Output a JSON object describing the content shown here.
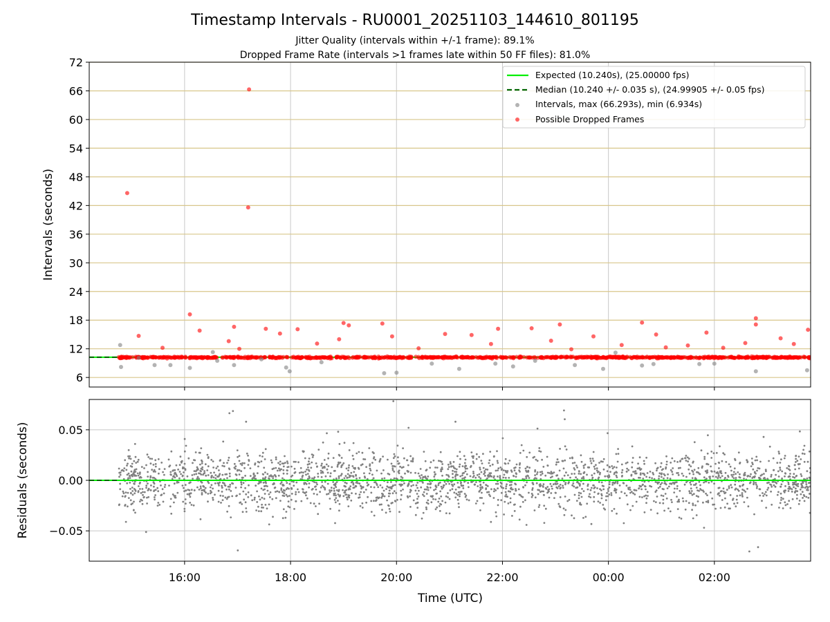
{
  "chart_data": [
    {
      "type": "scatter",
      "panel": "top",
      "title": "Timestamp Intervals - RU0001_20251103_144610_801195",
      "subtitle_lines": [
        "Jitter Quality (intervals within +/-1 frame): 89.1%",
        "Dropped Frame Rate (intervals >1 frames late within 50 FF files): 81.0%"
      ],
      "ylabel": "Intervals (seconds)",
      "ylim": [
        4,
        72
      ],
      "yticks": [
        "6",
        "12",
        "18",
        "24",
        "30",
        "36",
        "42",
        "48",
        "54",
        "60",
        "66",
        "72"
      ],
      "x_start": "2025-11-03 14:12",
      "x_end": "2025-11-04 03:49",
      "xticks": [
        "16:00",
        "18:00",
        "20:00",
        "22:00",
        "00:00",
        "02:00"
      ],
      "grid": true,
      "legend_position": "top-right",
      "legend": [
        {
          "label": "Expected (10.240s), (25.00000 fps)",
          "style": "solid-line",
          "color": "#00ee00"
        },
        {
          "label": "Median (10.240 +/- 0.035 s), (24.99905 +/- 0.05 fps)",
          "style": "dashed-line",
          "color": "#006400"
        },
        {
          "label": "Intervals, max (66.293s), min (6.934s)",
          "style": "marker",
          "color": "#808080"
        },
        {
          "label": "Possible Dropped Frames",
          "style": "marker",
          "color": "#ff0000"
        }
      ],
      "series": [
        {
          "name": "Expected (10.240s), (25.00000 fps)",
          "kind": "hline",
          "y": 10.24,
          "color": "#00ee00"
        },
        {
          "name": "Median (10.240 +/- 0.035 s), (24.99905 +/- 0.05 fps)",
          "kind": "hline",
          "y": 10.24,
          "color": "#006400"
        },
        {
          "name": "Intervals, max (66.293s), min (6.934s)",
          "kind": "points",
          "color": "#808080",
          "points": [
            {
              "x": "2025-11-03 14:47",
              "y": 12.8
            },
            {
              "x": "2025-11-03 14:48",
              "y": 8.2
            },
            {
              "x": "2025-11-03 15:08",
              "y": 10.1
            },
            {
              "x": "2025-11-03 15:26",
              "y": 8.6
            },
            {
              "x": "2025-11-03 15:44",
              "y": 8.6
            },
            {
              "x": "2025-11-03 16:06",
              "y": 8.0
            },
            {
              "x": "2025-11-03 16:32",
              "y": 11.3
            },
            {
              "x": "2025-11-03 16:37",
              "y": 9.5
            },
            {
              "x": "2025-11-03 16:56",
              "y": 8.6
            },
            {
              "x": "2025-11-03 17:27",
              "y": 9.8
            },
            {
              "x": "2025-11-03 17:55",
              "y": 8.1
            },
            {
              "x": "2025-11-03 17:59",
              "y": 7.3
            },
            {
              "x": "2025-11-03 18:35",
              "y": 9.2
            },
            {
              "x": "2025-11-03 19:46",
              "y": 6.9
            },
            {
              "x": "2025-11-03 20:00",
              "y": 7.0
            },
            {
              "x": "2025-11-03 20:40",
              "y": 8.9
            },
            {
              "x": "2025-11-03 21:11",
              "y": 7.8
            },
            {
              "x": "2025-11-03 21:52",
              "y": 8.9
            },
            {
              "x": "2025-11-03 22:12",
              "y": 8.3
            },
            {
              "x": "2025-11-03 22:37",
              "y": 9.5
            },
            {
              "x": "2025-11-03 23:22",
              "y": 8.6
            },
            {
              "x": "2025-11-03 23:54",
              "y": 7.8
            },
            {
              "x": "2025-11-04 00:08",
              "y": 11.2
            },
            {
              "x": "2025-11-04 00:38",
              "y": 8.5
            },
            {
              "x": "2025-11-04 00:51",
              "y": 8.8
            },
            {
              "x": "2025-11-04 01:43",
              "y": 8.8
            },
            {
              "x": "2025-11-04 02:00",
              "y": 8.9
            },
            {
              "x": "2025-11-04 02:47",
              "y": 7.3
            },
            {
              "x": "2025-11-04 03:45",
              "y": 7.5
            }
          ]
        },
        {
          "name": "Possible Dropped Frames",
          "kind": "points",
          "color": "#ff0000",
          "points": [
            {
              "x": "2025-11-03 14:55",
              "y": 44.6
            },
            {
              "x": "2025-11-03 17:13",
              "y": 66.3
            },
            {
              "x": "2025-11-03 17:12",
              "y": 41.6
            },
            {
              "x": "2025-11-03 16:06",
              "y": 19.2
            },
            {
              "x": "2025-11-03 16:56",
              "y": 16.6
            },
            {
              "x": "2025-11-03 17:32",
              "y": 16.2
            },
            {
              "x": "2025-11-03 17:48",
              "y": 15.2
            },
            {
              "x": "2025-11-03 18:08",
              "y": 16.1
            },
            {
              "x": "2025-11-03 19:00",
              "y": 17.4
            },
            {
              "x": "2025-11-03 19:06",
              "y": 16.9
            },
            {
              "x": "2025-11-03 19:44",
              "y": 17.3
            },
            {
              "x": "2025-11-03 21:55",
              "y": 16.2
            },
            {
              "x": "2025-11-03 22:33",
              "y": 16.3
            },
            {
              "x": "2025-11-03 23:05",
              "y": 17.1
            },
            {
              "x": "2025-11-04 00:38",
              "y": 17.5
            },
            {
              "x": "2025-11-04 01:51",
              "y": 15.4
            },
            {
              "x": "2025-11-04 02:47",
              "y": 18.4
            },
            {
              "x": "2025-11-04 02:47",
              "y": 17.1
            },
            {
              "x": "2025-11-04 03:46",
              "y": 16.0
            },
            {
              "x": "2025-11-03 15:08",
              "y": 14.7
            },
            {
              "x": "2025-11-03 16:17",
              "y": 15.8
            },
            {
              "x": "2025-11-03 18:55",
              "y": 14.0
            },
            {
              "x": "2025-11-03 20:55",
              "y": 15.1
            },
            {
              "x": "2025-11-03 21:25",
              "y": 14.9
            },
            {
              "x": "2025-11-03 23:43",
              "y": 14.6
            },
            {
              "x": "2025-11-04 00:54",
              "y": 15.0
            },
            {
              "x": "2025-11-04 03:15",
              "y": 14.2
            },
            {
              "x": "2025-11-03 16:50",
              "y": 13.6
            },
            {
              "x": "2025-11-03 18:30",
              "y": 13.1
            },
            {
              "x": "2025-11-03 19:55",
              "y": 14.6
            },
            {
              "x": "2025-11-03 21:47",
              "y": 13.0
            },
            {
              "x": "2025-11-03 22:55",
              "y": 13.7
            },
            {
              "x": "2025-11-04 00:15",
              "y": 12.8
            },
            {
              "x": "2025-11-04 01:30",
              "y": 12.7
            },
            {
              "x": "2025-11-04 02:35",
              "y": 13.2
            },
            {
              "x": "2025-11-04 03:30",
              "y": 13.0
            },
            {
              "x": "2025-11-03 15:35",
              "y": 12.2
            },
            {
              "x": "2025-11-03 17:02",
              "y": 12.0
            },
            {
              "x": "2025-11-03 20:25",
              "y": 12.1
            },
            {
              "x": "2025-11-03 23:18",
              "y": 11.9
            },
            {
              "x": "2025-11-04 01:05",
              "y": 12.3
            },
            {
              "x": "2025-11-04 02:10",
              "y": 12.2
            }
          ]
        },
        {
          "name": "Intervals (dense band near median)",
          "kind": "band",
          "x_range": [
            "2025-11-03 14:45",
            "2025-11-04 03:49"
          ],
          "y": 10.2,
          "color": "#ff0000"
        }
      ]
    },
    {
      "type": "scatter",
      "panel": "bottom",
      "ylabel": "Residuals (seconds)",
      "ylim": [
        -0.08,
        0.08
      ],
      "yticks": [
        "−0.05",
        "0.00",
        "0.05"
      ],
      "xlabel": "Time (UTC)",
      "x_start": "2025-11-03 14:12",
      "x_end": "2025-11-04 03:49",
      "xticks": [
        "16:00",
        "18:00",
        "20:00",
        "22:00",
        "00:00",
        "02:00"
      ],
      "grid": true,
      "series": [
        {
          "name": "Expected",
          "kind": "hline",
          "y": 0.0,
          "color": "#00ee00"
        },
        {
          "name": "Median",
          "kind": "hline",
          "y": 0.0,
          "color": "#006400"
        },
        {
          "name": "Residuals",
          "kind": "points",
          "color": "#808080",
          "approx_std": 0.02,
          "x_range": [
            "2025-11-03 14:45",
            "2025-11-04 03:49"
          ]
        }
      ]
    }
  ]
}
